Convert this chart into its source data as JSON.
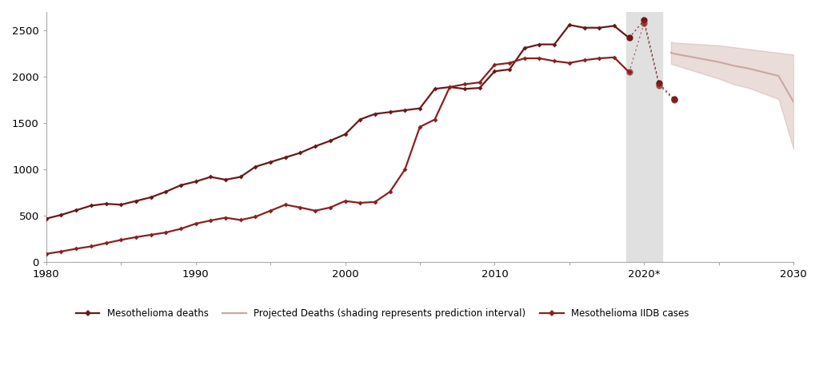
{
  "background_color": "#ffffff",
  "xlim": [
    1980,
    2030
  ],
  "ylim": [
    0,
    2700
  ],
  "yticks": [
    0,
    500,
    1000,
    1500,
    2000,
    2500
  ],
  "xticks": [
    1980,
    1985,
    1990,
    1995,
    2000,
    2005,
    2010,
    2015,
    2020,
    2025,
    2030
  ],
  "xtick_labels": [
    "1980",
    "",
    "1990",
    "",
    "2000",
    "",
    "2010",
    "",
    "2020*",
    "",
    "2030"
  ],
  "deaths_years": [
    1980,
    1981,
    1982,
    1983,
    1984,
    1985,
    1986,
    1987,
    1988,
    1989,
    1990,
    1991,
    1992,
    1993,
    1994,
    1995,
    1996,
    1997,
    1998,
    1999,
    2000,
    2001,
    2002,
    2003,
    2004,
    2005,
    2006,
    2007,
    2008,
    2009,
    2010,
    2011,
    2012,
    2013,
    2014,
    2015,
    2016,
    2017,
    2018,
    2019
  ],
  "deaths_values": [
    470,
    510,
    560,
    610,
    630,
    620,
    660,
    700,
    760,
    830,
    870,
    920,
    890,
    920,
    1030,
    1080,
    1130,
    1180,
    1250,
    1310,
    1380,
    1540,
    1600,
    1620,
    1640,
    1660,
    1870,
    1890,
    1870,
    1880,
    2060,
    2080,
    2310,
    2350,
    2350,
    2560,
    2530,
    2530,
    2550,
    2420
  ],
  "deaths_color": "#6B1818",
  "iidb_years": [
    1980,
    1981,
    1982,
    1983,
    1984,
    1985,
    1986,
    1987,
    1988,
    1989,
    1990,
    1991,
    1992,
    1993,
    1994,
    1995,
    1996,
    1997,
    1998,
    1999,
    2000,
    2001,
    2002,
    2003,
    2004,
    2005,
    2006,
    2007,
    2008,
    2009,
    2010,
    2011,
    2012,
    2013,
    2014,
    2015,
    2016,
    2017,
    2018,
    2019
  ],
  "iidb_values": [
    90,
    115,
    145,
    170,
    205,
    240,
    270,
    295,
    320,
    360,
    415,
    450,
    480,
    455,
    490,
    555,
    620,
    590,
    555,
    590,
    660,
    640,
    650,
    760,
    1000,
    1460,
    1540,
    1890,
    1920,
    1940,
    2130,
    2150,
    2200,
    2200,
    2170,
    2150,
    2180,
    2200,
    2210,
    2050
  ],
  "iidb_color": "#8B2020",
  "dotted_deaths_years": [
    2019,
    2020,
    2021,
    2022
  ],
  "dotted_deaths_values": [
    2420,
    2610,
    1930,
    1760
  ],
  "dotted_iidb_years": [
    2019,
    2020,
    2021,
    2022
  ],
  "dotted_iidb_values": [
    2050,
    2580,
    1910,
    1750
  ],
  "proj_years": [
    2021.8,
    2022,
    2023,
    2024,
    2025,
    2026,
    2027,
    2028,
    2029,
    2030
  ],
  "proj_values": [
    2260,
    2250,
    2220,
    2190,
    2160,
    2120,
    2090,
    2050,
    2010,
    1730
  ],
  "proj_upper": [
    2380,
    2370,
    2360,
    2350,
    2340,
    2320,
    2300,
    2280,
    2260,
    2240
  ],
  "proj_lower": [
    2140,
    2130,
    2080,
    2030,
    1980,
    1920,
    1880,
    1820,
    1760,
    1220
  ],
  "proj_color": "#c9a8a0",
  "shade_xmin": 2018.8,
  "shade_xmax": 2021.2,
  "shade_color": "#e0e0e0",
  "legend_deaths_label": "Mesothelioma deaths",
  "legend_proj_label": "Projected Deaths (shading represents prediction interval)",
  "legend_iidb_label": "Mesothelioma IIDB cases"
}
